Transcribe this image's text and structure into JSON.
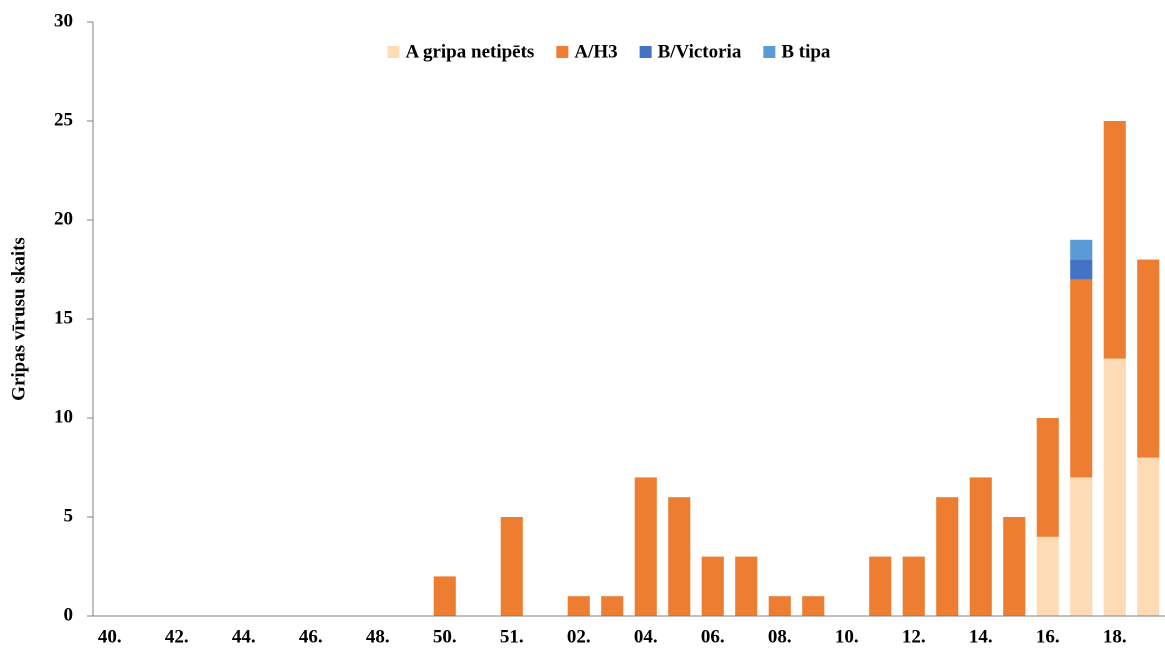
{
  "chart_data": {
    "type": "stacked_bar",
    "y_label": "Gripas vīrusu skaits",
    "categories": [
      "40.",
      null,
      "42.",
      null,
      "44.",
      null,
      "46.",
      null,
      "48.",
      null,
      "50.",
      null,
      "51.",
      null,
      "02.",
      null,
      "04.",
      null,
      "06.",
      null,
      "08.",
      null,
      "10.",
      null,
      "12.",
      null,
      "14.",
      null,
      "16.",
      null,
      "18.",
      null
    ],
    "series": [
      {
        "name": "A gripa netipēts",
        "color": "#fddcb5",
        "values": [
          0,
          0,
          0,
          0,
          0,
          0,
          0,
          0,
          0,
          0,
          0,
          0,
          0,
          0,
          0,
          0,
          0,
          0,
          0,
          0,
          0,
          0,
          0,
          0,
          0,
          0,
          0,
          0,
          4,
          7,
          13,
          8
        ]
      },
      {
        "name": "A/H3",
        "color": "#ed7d31",
        "values": [
          0,
          0,
          0,
          0,
          0,
          0,
          0,
          0,
          0,
          0,
          2,
          0,
          5,
          0,
          1,
          1,
          7,
          6,
          3,
          3,
          1,
          1,
          0,
          3,
          3,
          6,
          7,
          5,
          6,
          10,
          12,
          10
        ]
      },
      {
        "name": "B/Victoria",
        "color": "#4472c4",
        "values": [
          0,
          0,
          0,
          0,
          0,
          0,
          0,
          0,
          0,
          0,
          0,
          0,
          0,
          0,
          0,
          0,
          0,
          0,
          0,
          0,
          0,
          0,
          0,
          0,
          0,
          0,
          0,
          0,
          0,
          1,
          0,
          0
        ]
      },
      {
        "name": "B tipa",
        "color": "#5b9bd5",
        "values": [
          0,
          0,
          0,
          0,
          0,
          0,
          0,
          0,
          0,
          0,
          0,
          0,
          0,
          0,
          0,
          0,
          0,
          0,
          0,
          0,
          0,
          0,
          0,
          0,
          0,
          0,
          0,
          0,
          0,
          1,
          0,
          0
        ]
      }
    ],
    "ylim": [
      0,
      30
    ],
    "yticks": [
      0,
      5,
      10,
      15,
      20,
      25,
      30
    ],
    "grid": false,
    "legend": "top"
  }
}
